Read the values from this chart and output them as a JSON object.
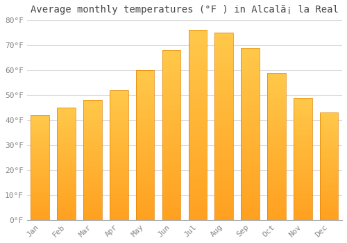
{
  "title": "Average monthly temperatures (°F ) in Alcalã¡ la Real",
  "months": [
    "Jan",
    "Feb",
    "Mar",
    "Apr",
    "May",
    "Jun",
    "Jul",
    "Aug",
    "Sep",
    "Oct",
    "Nov",
    "Dec"
  ],
  "values": [
    42,
    45,
    48,
    52,
    60,
    68,
    76,
    75,
    69,
    59,
    49,
    43
  ],
  "bar_color_top": "#FFC84A",
  "bar_color_bottom": "#FFA020",
  "bar_edge_color": "#E08000",
  "background_color": "#FFFFFF",
  "plot_bg_color": "#FFFFFF",
  "grid_color": "#DDDDDD",
  "ylim": [
    0,
    80
  ],
  "yticks": [
    0,
    10,
    20,
    30,
    40,
    50,
    60,
    70,
    80
  ],
  "title_fontsize": 10,
  "tick_fontsize": 8,
  "tick_color": "#888888"
}
